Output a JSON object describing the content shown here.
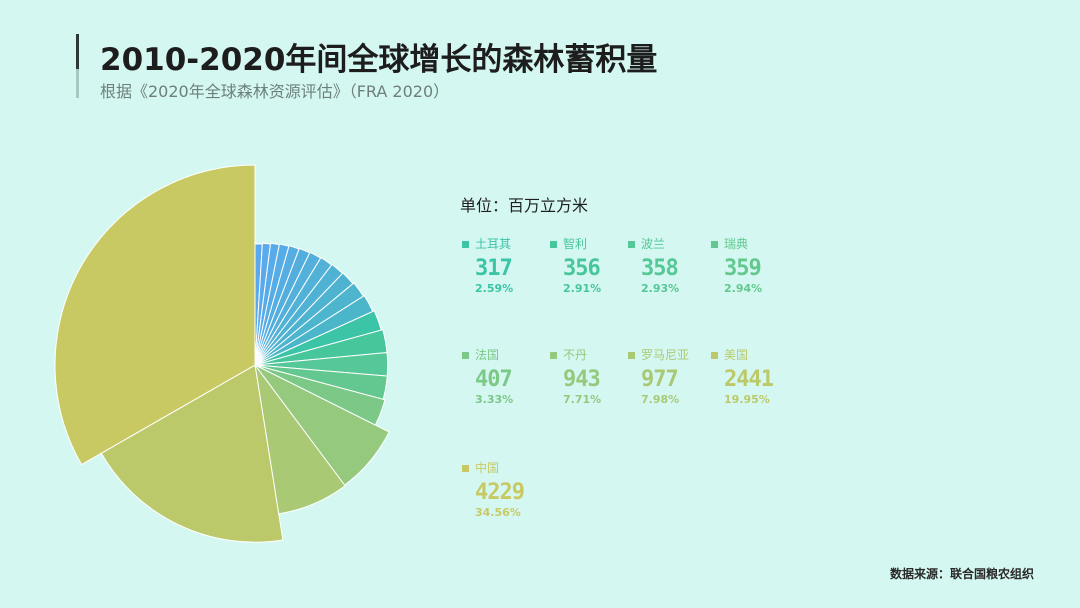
{
  "header": {
    "title": "2010-2020年间全球增长的森林蓄积量",
    "subtitle": "根据《2020年全球森林资源评估》（FRA 2020）"
  },
  "unit_label": "单位：百万立方米",
  "source": "数据来源：联合国粮农组织",
  "colors": {
    "background": "#d4f8f1",
    "gradient_start": "#5aa8ee",
    "gradient_mid": "#3cc4a6",
    "gradient_end": "#d0cc66"
  },
  "chart_data": {
    "type": "pie",
    "style": "rose",
    "unit": "百万立方米",
    "legend": [
      {
        "name": "土耳其",
        "value": 317,
        "percent": "2.59%",
        "color": "#3cc4a6"
      },
      {
        "name": "智利",
        "value": 356,
        "percent": "2.91%",
        "color": "#47c69c"
      },
      {
        "name": "波兰",
        "value": 358,
        "percent": "2.93%",
        "color": "#56c796"
      },
      {
        "name": "瑞典",
        "value": 359,
        "percent": "2.94%",
        "color": "#63c88f"
      },
      {
        "name": "法国",
        "value": 407,
        "percent": "3.33%",
        "color": "#7bc887"
      },
      {
        "name": "不丹",
        "value": 943,
        "percent": "7.71%",
        "color": "#95c97e"
      },
      {
        "name": "罗马尼亚",
        "value": 977,
        "percent": "7.98%",
        "color": "#a9c974"
      },
      {
        "name": "美国",
        "value": 2441,
        "percent": "19.95%",
        "color": "#bcc96a"
      },
      {
        "name": "中国",
        "value": 4229,
        "percent": "34.56%",
        "color": "#c9c963"
      }
    ],
    "unlabeled_slices_percent": [
      1.0,
      1.1,
      1.2,
      1.3,
      1.4,
      1.5,
      1.6,
      1.7,
      1.8,
      1.9,
      2.1,
      2.3
    ]
  }
}
